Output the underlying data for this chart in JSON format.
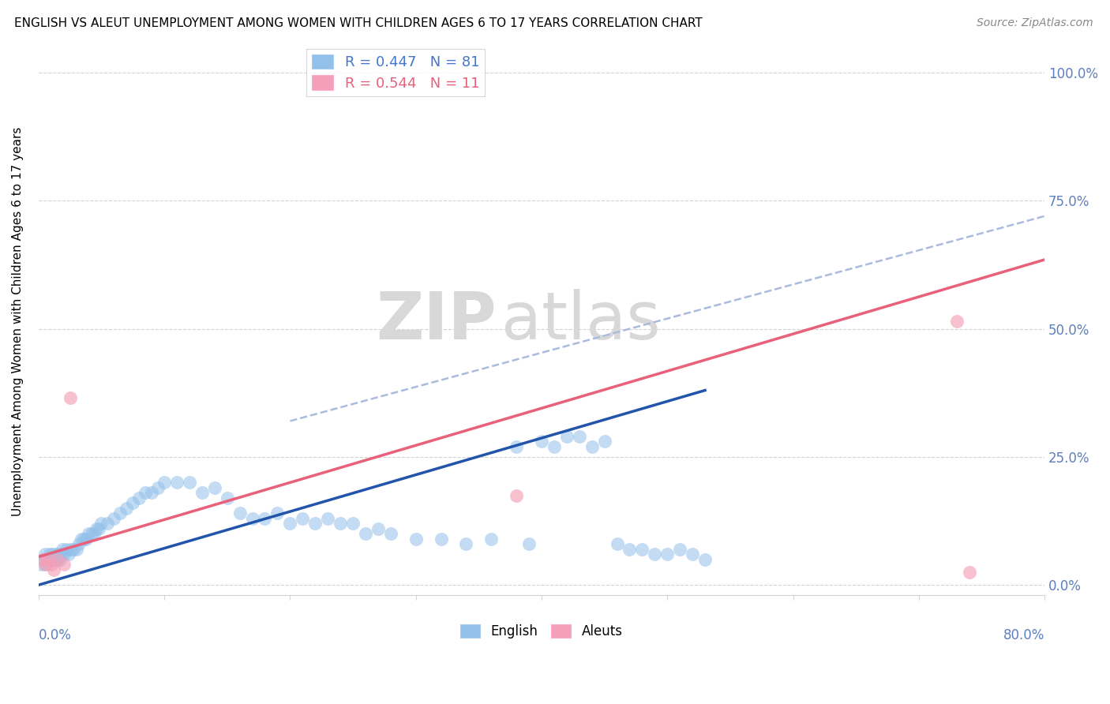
{
  "title": "ENGLISH VS ALEUT UNEMPLOYMENT AMONG WOMEN WITH CHILDREN AGES 6 TO 17 YEARS CORRELATION CHART",
  "source": "Source: ZipAtlas.com",
  "ylabel": "Unemployment Among Women with Children Ages 6 to 17 years",
  "legend_english_r": "R = 0.447",
  "legend_english_n": "N = 81",
  "legend_aleuts_r": "R = 0.544",
  "legend_aleuts_n": "N = 11",
  "english_color": "#92C0EA",
  "aleuts_color": "#F4A0B8",
  "english_line_color": "#2255AA",
  "aleuts_line_color": "#E8607A",
  "dashed_line_color": "#AABBDD",
  "xlim": [
    0.0,
    0.8
  ],
  "ylim": [
    -0.02,
    1.05
  ],
  "english_scatter_x": [
    0.002,
    0.004,
    0.005,
    0.006,
    0.007,
    0.008,
    0.009,
    0.01,
    0.011,
    0.012,
    0.013,
    0.014,
    0.015,
    0.016,
    0.017,
    0.018,
    0.019,
    0.02,
    0.022,
    0.024,
    0.026,
    0.028,
    0.03,
    0.032,
    0.034,
    0.036,
    0.038,
    0.04,
    0.042,
    0.044,
    0.046,
    0.048,
    0.05,
    0.055,
    0.06,
    0.065,
    0.07,
    0.075,
    0.08,
    0.085,
    0.09,
    0.095,
    0.1,
    0.11,
    0.12,
    0.13,
    0.14,
    0.15,
    0.16,
    0.17,
    0.18,
    0.19,
    0.2,
    0.21,
    0.22,
    0.23,
    0.24,
    0.25,
    0.26,
    0.27,
    0.28,
    0.3,
    0.32,
    0.34,
    0.36,
    0.38,
    0.39,
    0.4,
    0.41,
    0.42,
    0.43,
    0.44,
    0.45,
    0.46,
    0.47,
    0.48,
    0.49,
    0.5,
    0.51,
    0.52,
    0.53
  ],
  "english_scatter_y": [
    0.04,
    0.05,
    0.06,
    0.04,
    0.05,
    0.05,
    0.06,
    0.05,
    0.06,
    0.05,
    0.05,
    0.06,
    0.05,
    0.06,
    0.05,
    0.06,
    0.07,
    0.06,
    0.07,
    0.06,
    0.07,
    0.07,
    0.07,
    0.08,
    0.09,
    0.09,
    0.09,
    0.1,
    0.1,
    0.1,
    0.11,
    0.11,
    0.12,
    0.12,
    0.13,
    0.14,
    0.15,
    0.16,
    0.17,
    0.18,
    0.18,
    0.19,
    0.2,
    0.2,
    0.2,
    0.18,
    0.19,
    0.17,
    0.14,
    0.13,
    0.13,
    0.14,
    0.12,
    0.13,
    0.12,
    0.13,
    0.12,
    0.12,
    0.1,
    0.11,
    0.1,
    0.09,
    0.09,
    0.08,
    0.09,
    0.27,
    0.08,
    0.28,
    0.27,
    0.29,
    0.29,
    0.27,
    0.28,
    0.08,
    0.07,
    0.07,
    0.06,
    0.06,
    0.07,
    0.06,
    0.05
  ],
  "aleuts_scatter_x": [
    0.003,
    0.005,
    0.008,
    0.01,
    0.012,
    0.015,
    0.02,
    0.025,
    0.38,
    0.73,
    0.74
  ],
  "aleuts_scatter_y": [
    0.05,
    0.04,
    0.05,
    0.04,
    0.03,
    0.05,
    0.04,
    0.365,
    0.175,
    0.515,
    0.025
  ],
  "english_line_x": [
    0.0,
    0.53
  ],
  "english_line_y": [
    0.0,
    0.38
  ],
  "aleuts_line_x": [
    0.0,
    0.8
  ],
  "aleuts_line_y": [
    0.055,
    0.635
  ],
  "dashed_line_x": [
    0.2,
    0.8
  ],
  "dashed_line_y": [
    0.32,
    0.72
  ]
}
